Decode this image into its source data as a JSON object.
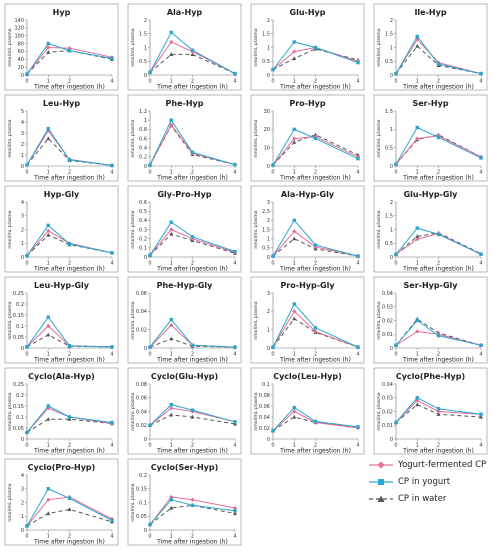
{
  "chart_data": [
    {
      "type": "line",
      "title": "Hyp",
      "ylabel": "nmol/mL plasma",
      "xlabel": "Time after ingestion  (h)",
      "x": [
        0,
        1,
        2,
        4
      ],
      "ylim": [
        0,
        140
      ],
      "yticks": [
        0,
        20,
        40,
        60,
        80,
        100,
        120,
        140
      ],
      "series": [
        {
          "name": "Yogurt-fermented CP",
          "values": [
            2,
            70,
            68,
            45
          ]
        },
        {
          "name": "CP in yogurt",
          "values": [
            2,
            80,
            62,
            42
          ]
        },
        {
          "name": "CP in water",
          "values": [
            2,
            58,
            62,
            40
          ]
        }
      ]
    },
    {
      "type": "line",
      "title": "Ala-Hyp",
      "ylabel": "nmol/mL plasma",
      "xlabel": "Time after ingestion  (h)",
      "x": [
        0,
        1,
        2,
        4
      ],
      "ylim": [
        0,
        2
      ],
      "yticks": [
        0,
        0.5,
        1,
        1.5,
        2
      ],
      "series": [
        {
          "name": "Yogurt-fermented CP",
          "values": [
            0.1,
            1.2,
            0.85,
            0.05
          ]
        },
        {
          "name": "CP in yogurt",
          "values": [
            0.1,
            1.55,
            0.9,
            0.05
          ]
        },
        {
          "name": "CP in water",
          "values": [
            0.1,
            0.75,
            0.75,
            0.05
          ]
        }
      ]
    },
    {
      "type": "line",
      "title": "Glu-Hyp",
      "ylabel": "nmol/mL plasma",
      "xlabel": "Time after ingestion  (h)",
      "x": [
        0,
        1,
        2,
        4
      ],
      "ylim": [
        0,
        2
      ],
      "yticks": [
        0,
        0.5,
        1,
        1.5,
        2
      ],
      "series": [
        {
          "name": "Yogurt-fermented CP",
          "values": [
            0.2,
            0.85,
            1.0,
            0.5
          ]
        },
        {
          "name": "CP in yogurt",
          "values": [
            0.2,
            1.2,
            1.0,
            0.45
          ]
        },
        {
          "name": "CP in water",
          "values": [
            0.2,
            0.6,
            0.95,
            0.55
          ]
        }
      ]
    },
    {
      "type": "line",
      "title": "Ile-Hyp",
      "ylabel": "nmol/mL plasma",
      "xlabel": "Time after ingestion  (h)",
      "x": [
        0,
        1,
        2,
        4
      ],
      "ylim": [
        0,
        2
      ],
      "yticks": [
        0,
        0.5,
        1,
        1.5,
        2
      ],
      "series": [
        {
          "name": "Yogurt-fermented CP",
          "values": [
            0.05,
            1.3,
            0.45,
            0.05
          ]
        },
        {
          "name": "CP in yogurt",
          "values": [
            0.05,
            1.4,
            0.4,
            0.05
          ]
        },
        {
          "name": "CP in water",
          "values": [
            0.05,
            1.05,
            0.35,
            0.05
          ]
        }
      ]
    },
    {
      "type": "line",
      "title": "Leu-Hyp",
      "ylabel": "nmol/mL plasma",
      "xlabel": "Time after ingestion  (h)",
      "x": [
        0,
        1,
        2,
        4
      ],
      "ylim": [
        0,
        5
      ],
      "yticks": [
        0,
        1,
        2,
        3,
        4,
        5
      ],
      "series": [
        {
          "name": "Yogurt-fermented CP",
          "values": [
            0.1,
            3.2,
            0.6,
            0.05
          ]
        },
        {
          "name": "CP in yogurt",
          "values": [
            0.1,
            3.4,
            0.55,
            0.05
          ]
        },
        {
          "name": "CP in water",
          "values": [
            0.1,
            2.5,
            0.5,
            0.05
          ]
        }
      ]
    },
    {
      "type": "line",
      "title": "Phe-Hyp",
      "ylabel": "nmol/mL plasma",
      "xlabel": "Time after ingestion  (h)",
      "x": [
        0,
        1,
        2,
        4
      ],
      "ylim": [
        0,
        1.2
      ],
      "yticks": [
        0,
        0.2,
        0.4,
        0.6,
        0.8,
        1,
        1.2
      ],
      "series": [
        {
          "name": "Yogurt-fermented CP",
          "values": [
            0.02,
            0.9,
            0.28,
            0.03
          ]
        },
        {
          "name": "CP in yogurt",
          "values": [
            0.02,
            1.0,
            0.3,
            0.03
          ]
        },
        {
          "name": "CP in water",
          "values": [
            0.02,
            0.88,
            0.25,
            0.03
          ]
        }
      ]
    },
    {
      "type": "line",
      "title": "Pro-Hyp",
      "ylabel": "nmol/mL plasma",
      "xlabel": "Time after ingestion  (h)",
      "x": [
        0,
        1,
        2,
        4
      ],
      "ylim": [
        0,
        30
      ],
      "yticks": [
        0,
        10,
        20,
        30
      ],
      "series": [
        {
          "name": "Yogurt-fermented CP",
          "values": [
            0.5,
            15,
            16,
            5
          ]
        },
        {
          "name": "CP in yogurt",
          "values": [
            0.5,
            20,
            15,
            4
          ]
        },
        {
          "name": "CP in water",
          "values": [
            0.5,
            13,
            17,
            6
          ]
        }
      ]
    },
    {
      "type": "line",
      "title": "Ser-Hyp",
      "ylabel": "nmol/mL plasma",
      "xlabel": "Time after ingestion  (h)",
      "x": [
        0,
        1,
        2,
        4
      ],
      "ylim": [
        0,
        1.5
      ],
      "yticks": [
        0,
        0.5,
        1,
        1.5
      ],
      "series": [
        {
          "name": "Yogurt-fermented CP",
          "values": [
            0.05,
            0.75,
            0.82,
            0.25
          ]
        },
        {
          "name": "CP in yogurt",
          "values": [
            0.05,
            1.05,
            0.78,
            0.22
          ]
        },
        {
          "name": "CP in water",
          "values": [
            0.05,
            0.72,
            0.85,
            0.25
          ]
        }
      ]
    },
    {
      "type": "line",
      "title": "Hyp-Gly",
      "ylabel": "nmol/mL plasma",
      "xlabel": "Time after ingestion  (h)",
      "x": [
        0,
        1,
        2,
        4
      ],
      "ylim": [
        0,
        4
      ],
      "yticks": [
        0,
        1,
        2,
        3,
        4
      ],
      "series": [
        {
          "name": "Yogurt-fermented CP",
          "values": [
            0.1,
            1.9,
            1.0,
            0.3
          ]
        },
        {
          "name": "CP in yogurt",
          "values": [
            0.1,
            2.3,
            0.95,
            0.3
          ]
        },
        {
          "name": "CP in water",
          "values": [
            0.1,
            1.6,
            0.9,
            0.3
          ]
        }
      ]
    },
    {
      "type": "line",
      "title": "Gly-Pro-Hyp",
      "ylabel": "nmol/mL plasma",
      "xlabel": "Time after ingestion  (h)",
      "x": [
        0,
        1,
        2,
        4
      ],
      "ylim": [
        0,
        0.6
      ],
      "yticks": [
        0,
        0.1,
        0.2,
        0.3,
        0.4,
        0.5,
        0.6
      ],
      "series": [
        {
          "name": "Yogurt-fermented CP",
          "values": [
            0.02,
            0.3,
            0.2,
            0.05
          ]
        },
        {
          "name": "CP in yogurt",
          "values": [
            0.02,
            0.38,
            0.22,
            0.06
          ]
        },
        {
          "name": "CP in water",
          "values": [
            0.02,
            0.25,
            0.18,
            0.04
          ]
        }
      ]
    },
    {
      "type": "line",
      "title": "Ala-Hyp-Gly",
      "ylabel": "nmol/mL plasma",
      "xlabel": "Time after ingestion  (h)",
      "x": [
        0,
        1,
        2,
        4
      ],
      "ylim": [
        0,
        3
      ],
      "yticks": [
        0,
        0.5,
        1,
        1.5,
        2,
        2.5,
        3
      ],
      "series": [
        {
          "name": "Yogurt-fermented CP",
          "values": [
            0.05,
            1.4,
            0.55,
            0.05
          ]
        },
        {
          "name": "CP in yogurt",
          "values": [
            0.05,
            2.0,
            0.65,
            0.05
          ]
        },
        {
          "name": "CP in water",
          "values": [
            0.05,
            1.0,
            0.45,
            0.05
          ]
        }
      ]
    },
    {
      "type": "line",
      "title": "Glu-Hyp-Gly",
      "ylabel": "nmol/mL plasma",
      "xlabel": "Time after ingestion  (h)",
      "x": [
        0,
        1,
        2,
        4
      ],
      "ylim": [
        0,
        2
      ],
      "yticks": [
        0,
        0.5,
        1,
        1.5,
        2
      ],
      "series": [
        {
          "name": "Yogurt-fermented CP",
          "values": [
            0.1,
            0.65,
            0.85,
            0.1
          ]
        },
        {
          "name": "CP in yogurt",
          "values": [
            0.1,
            1.05,
            0.82,
            0.1
          ]
        },
        {
          "name": "CP in water",
          "values": [
            0.1,
            0.75,
            0.88,
            0.12
          ]
        }
      ]
    },
    {
      "type": "line",
      "title": "Leu-Hyp-Gly",
      "ylabel": "nmol/mL plasma",
      "xlabel": "Time after ingestion  (h)",
      "x": [
        0,
        1,
        2,
        4
      ],
      "ylim": [
        0,
        0.25
      ],
      "yticks": [
        0,
        0.05,
        0.1,
        0.15,
        0.2,
        0.25
      ],
      "series": [
        {
          "name": "Yogurt-fermented CP",
          "values": [
            0.005,
            0.1,
            0.01,
            0.005
          ]
        },
        {
          "name": "CP in yogurt",
          "values": [
            0.005,
            0.14,
            0.01,
            0.005
          ]
        },
        {
          "name": "CP in water",
          "values": [
            0.005,
            0.06,
            0.008,
            0.005
          ]
        }
      ]
    },
    {
      "type": "line",
      "title": "Phe-Hyp-Gly",
      "ylabel": "nmol/mL plasma",
      "xlabel": "Time after ingestion  (h)",
      "x": [
        0,
        1,
        2,
        4
      ],
      "ylim": [
        0,
        0.06
      ],
      "yticks": [
        0,
        0.02,
        0.04,
        0.06
      ],
      "series": [
        {
          "name": "Yogurt-fermented CP",
          "values": [
            0.001,
            0.025,
            0.003,
            0.001
          ]
        },
        {
          "name": "CP in yogurt",
          "values": [
            0.001,
            0.031,
            0.003,
            0.001
          ]
        },
        {
          "name": "CP in water",
          "values": [
            0.001,
            0.01,
            0.002,
            0.001
          ]
        }
      ]
    },
    {
      "type": "line",
      "title": "Pro-Hyp-Gly",
      "ylabel": "nmol/mL plasma",
      "xlabel": "Time after ingestion  (h)",
      "x": [
        0,
        1,
        2,
        4
      ],
      "ylim": [
        0,
        3
      ],
      "yticks": [
        0,
        1,
        2,
        3
      ],
      "series": [
        {
          "name": "Yogurt-fermented CP",
          "values": [
            0.05,
            2.0,
            0.9,
            0.05
          ]
        },
        {
          "name": "CP in yogurt",
          "values": [
            0.05,
            2.4,
            1.1,
            0.05
          ]
        },
        {
          "name": "CP in water",
          "values": [
            0.05,
            1.6,
            0.85,
            0.05
          ]
        }
      ]
    },
    {
      "type": "line",
      "title": "Ser-Hyp-Gly",
      "ylabel": "nmol/mL plasma",
      "xlabel": "Time after ingestion  (h)",
      "x": [
        0,
        1,
        2,
        4
      ],
      "ylim": [
        0,
        0.04
      ],
      "yticks": [
        0,
        0.01,
        0.02,
        0.03,
        0.04
      ],
      "series": [
        {
          "name": "Yogurt-fermented CP",
          "values": [
            0.002,
            0.012,
            0.01,
            0.002
          ]
        },
        {
          "name": "CP in yogurt",
          "values": [
            0.002,
            0.02,
            0.009,
            0.002
          ]
        },
        {
          "name": "CP in water",
          "values": [
            0.002,
            0.021,
            0.011,
            0.002
          ]
        }
      ]
    },
    {
      "type": "line",
      "title": "Cyclo(Ala-Hyp)",
      "ylabel": "nmol/mL plasma",
      "xlabel": "Time after ingestion  (h)",
      "x": [
        0,
        1,
        2,
        4
      ],
      "ylim": [
        0,
        0.25
      ],
      "yticks": [
        0,
        0.05,
        0.1,
        0.15,
        0.2,
        0.25
      ],
      "series": [
        {
          "name": "Yogurt-fermented CP",
          "values": [
            0.03,
            0.14,
            0.1,
            0.07
          ]
        },
        {
          "name": "CP in yogurt",
          "values": [
            0.03,
            0.15,
            0.1,
            0.075
          ]
        },
        {
          "name": "CP in water",
          "values": [
            0.03,
            0.09,
            0.09,
            0.07
          ]
        }
      ]
    },
    {
      "type": "line",
      "title": "Cyclo(Glu-Hyp)",
      "ylabel": "nmol/mL plasma",
      "xlabel": "Time after ingestion  (h)",
      "x": [
        0,
        1,
        2,
        4
      ],
      "ylim": [
        0,
        0.08
      ],
      "yticks": [
        0,
        0.02,
        0.04,
        0.06,
        0.08
      ],
      "series": [
        {
          "name": "Yogurt-fermented CP",
          "values": [
            0.02,
            0.045,
            0.04,
            0.025
          ]
        },
        {
          "name": "CP in yogurt",
          "values": [
            0.02,
            0.05,
            0.042,
            0.025
          ]
        },
        {
          "name": "CP in water",
          "values": [
            0.02,
            0.035,
            0.032,
            0.022
          ]
        }
      ]
    },
    {
      "type": "line",
      "title": "Cyclo(Leu-Hyp)",
      "ylabel": "nmol/mL plasma",
      "xlabel": "Time after ingestion  (h)",
      "x": [
        0,
        1,
        2,
        4
      ],
      "ylim": [
        0,
        0.1
      ],
      "yticks": [
        0,
        0.02,
        0.04,
        0.06,
        0.08,
        0.1
      ],
      "series": [
        {
          "name": "Yogurt-fermented CP",
          "values": [
            0.015,
            0.05,
            0.03,
            0.02
          ]
        },
        {
          "name": "CP in yogurt",
          "values": [
            0.015,
            0.057,
            0.032,
            0.022
          ]
        },
        {
          "name": "CP in water",
          "values": [
            0.015,
            0.04,
            0.03,
            0.022
          ]
        }
      ]
    },
    {
      "type": "line",
      "title": "Cyclo(Phe-Hyp)",
      "ylabel": "nmol/mL plasma",
      "xlabel": "Time after ingestion  (h)",
      "x": [
        0,
        1,
        2,
        4
      ],
      "ylim": [
        0,
        0.04
      ],
      "yticks": [
        0,
        0.01,
        0.02,
        0.03,
        0.04
      ],
      "series": [
        {
          "name": "Yogurt-fermented CP",
          "values": [
            0.012,
            0.028,
            0.02,
            0.018
          ]
        },
        {
          "name": "CP in yogurt",
          "values": [
            0.012,
            0.03,
            0.022,
            0.018
          ]
        },
        {
          "name": "CP in water",
          "values": [
            0.012,
            0.025,
            0.018,
            0.016
          ]
        }
      ]
    },
    {
      "type": "line",
      "title": "Cyclo(Pro-Hyp)",
      "ylabel": "nmol/mL plasma",
      "xlabel": "Time after ingestion  (h)",
      "x": [
        0,
        1,
        2,
        4
      ],
      "ylim": [
        0,
        4
      ],
      "yticks": [
        0,
        1,
        2,
        3,
        4
      ],
      "series": [
        {
          "name": "Yogurt-fermented CP",
          "values": [
            0.3,
            2.2,
            2.4,
            0.8
          ]
        },
        {
          "name": "CP in yogurt",
          "values": [
            0.3,
            3.0,
            2.3,
            0.7
          ]
        },
        {
          "name": "CP in water",
          "values": [
            0.3,
            1.2,
            1.5,
            0.6
          ]
        }
      ]
    },
    {
      "type": "line",
      "title": "Cyclo(Ser-Hyp)",
      "ylabel": "nmol/mL plasma",
      "xlabel": "Time after ingestion  (h)",
      "x": [
        0,
        1,
        2,
        4
      ],
      "ylim": [
        0,
        0.2
      ],
      "yticks": [
        0,
        0.05,
        0.1,
        0.15,
        0.2
      ],
      "series": [
        {
          "name": "Yogurt-fermented CP",
          "values": [
            0.02,
            0.12,
            0.11,
            0.08
          ]
        },
        {
          "name": "CP in yogurt",
          "values": [
            0.02,
            0.11,
            0.09,
            0.07
          ]
        },
        {
          "name": "CP in water",
          "values": [
            0.02,
            0.08,
            0.09,
            0.06
          ]
        }
      ]
    }
  ],
  "legend": [
    {
      "label": "Yogurt-fermented CP",
      "color": "#e36f9a",
      "marker": "diamond",
      "dash": ""
    },
    {
      "label": "CP in yogurt",
      "color": "#2aa6cf",
      "marker": "square",
      "dash": ""
    },
    {
      "label": "CP in water",
      "color": "#555555",
      "marker": "triangle",
      "dash": "4,3"
    }
  ]
}
